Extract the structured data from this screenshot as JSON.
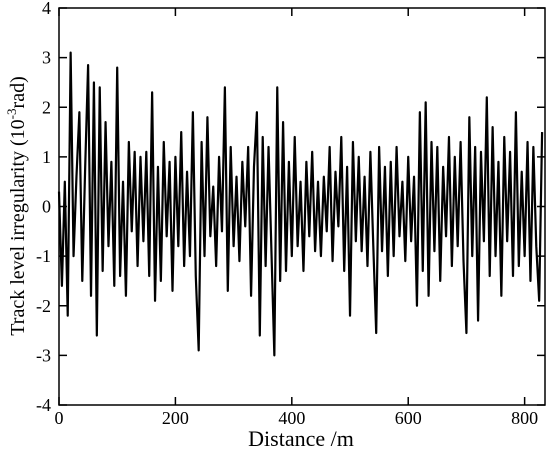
{
  "chart_data": {
    "type": "line",
    "xlabel": "Distance /m",
    "ylabel_parts": [
      "Track level  irregularity (10",
      "-3",
      "rad)"
    ],
    "xlim": [
      0,
      835
    ],
    "xticks": [
      0,
      200,
      400,
      600,
      800
    ],
    "ylim": [
      -4,
      4
    ],
    "yticks": [
      -4,
      -3,
      -2,
      -1,
      0,
      1,
      2,
      3,
      4
    ],
    "series": [
      {
        "color": "#000000",
        "x": [
          0,
          5,
          10,
          15,
          20,
          25,
          30,
          35,
          40,
          45,
          50,
          55,
          60,
          65,
          70,
          75,
          80,
          85,
          90,
          95,
          100,
          105,
          110,
          115,
          120,
          125,
          130,
          135,
          140,
          145,
          150,
          155,
          160,
          165,
          170,
          175,
          180,
          185,
          190,
          195,
          200,
          205,
          210,
          215,
          220,
          225,
          230,
          235,
          240,
          245,
          250,
          255,
          260,
          265,
          270,
          275,
          280,
          285,
          290,
          295,
          300,
          305,
          310,
          315,
          320,
          325,
          330,
          335,
          340,
          345,
          350,
          355,
          360,
          365,
          370,
          375,
          380,
          385,
          390,
          395,
          400,
          405,
          410,
          415,
          420,
          425,
          430,
          435,
          440,
          445,
          450,
          455,
          460,
          465,
          470,
          475,
          480,
          485,
          490,
          495,
          500,
          505,
          510,
          515,
          520,
          525,
          530,
          535,
          540,
          545,
          550,
          555,
          560,
          565,
          570,
          575,
          580,
          585,
          590,
          595,
          600,
          605,
          610,
          615,
          620,
          625,
          630,
          635,
          640,
          645,
          650,
          655,
          660,
          665,
          670,
          675,
          680,
          685,
          690,
          695,
          700,
          705,
          710,
          715,
          720,
          725,
          730,
          735,
          740,
          745,
          750,
          755,
          760,
          765,
          770,
          775,
          780,
          785,
          790,
          795,
          800,
          805,
          810,
          815,
          820,
          825,
          830
        ],
        "values": [
          0.3,
          -1.6,
          0.5,
          -2.2,
          3.1,
          -1.0,
          0.6,
          1.9,
          -1.5,
          0.8,
          2.85,
          -1.8,
          2.5,
          -2.6,
          2.4,
          -1.3,
          1.7,
          -0.8,
          0.9,
          -1.6,
          2.8,
          -1.4,
          0.5,
          -1.8,
          1.3,
          -0.5,
          1.1,
          -1.2,
          1.0,
          -0.7,
          1.1,
          -1.4,
          2.3,
          -1.9,
          0.8,
          -1.5,
          1.3,
          -0.6,
          0.9,
          -1.7,
          1.0,
          -0.8,
          1.5,
          -1.2,
          0.7,
          -1.0,
          1.9,
          -1.4,
          -2.9,
          1.3,
          -1.0,
          1.8,
          -0.6,
          0.4,
          -1.2,
          1.0,
          -0.5,
          2.4,
          -1.7,
          1.2,
          -0.8,
          0.6,
          -1.1,
          0.9,
          -0.4,
          1.2,
          -1.8,
          0.8,
          1.9,
          -2.6,
          1.4,
          -1.2,
          1.2,
          -0.9,
          -3.0,
          2.4,
          -1.5,
          1.7,
          -1.3,
          0.9,
          -1.0,
          1.4,
          -0.8,
          0.5,
          -1.3,
          0.9,
          -0.6,
          1.1,
          -0.9,
          0.5,
          -1.0,
          0.6,
          -0.5,
          1.2,
          -1.1,
          0.7,
          -0.4,
          1.4,
          -1.3,
          0.8,
          -2.2,
          1.3,
          -0.7,
          1.0,
          -0.9,
          0.6,
          -1.2,
          1.1,
          -0.8,
          -2.55,
          1.2,
          -0.9,
          0.8,
          -1.4,
          0.9,
          -1.0,
          1.2,
          -0.6,
          0.5,
          -1.1,
          1.0,
          -0.7,
          0.6,
          -2.0,
          1.9,
          -1.3,
          2.1,
          -1.8,
          1.3,
          -0.9,
          1.2,
          -1.5,
          0.8,
          -0.6,
          1.4,
          -1.2,
          1.0,
          -0.8,
          1.3,
          -1.1,
          -2.55,
          1.8,
          -1.0,
          1.2,
          -2.3,
          1.1,
          -0.7,
          2.2,
          -1.4,
          1.6,
          -1.0,
          0.9,
          -1.8,
          1.4,
          -0.7,
          1.1,
          -1.4,
          1.9,
          -1.2,
          0.7,
          -1.0,
          1.3,
          -1.5,
          1.2,
          -0.8,
          -1.9,
          1.5
        ]
      }
    ]
  }
}
